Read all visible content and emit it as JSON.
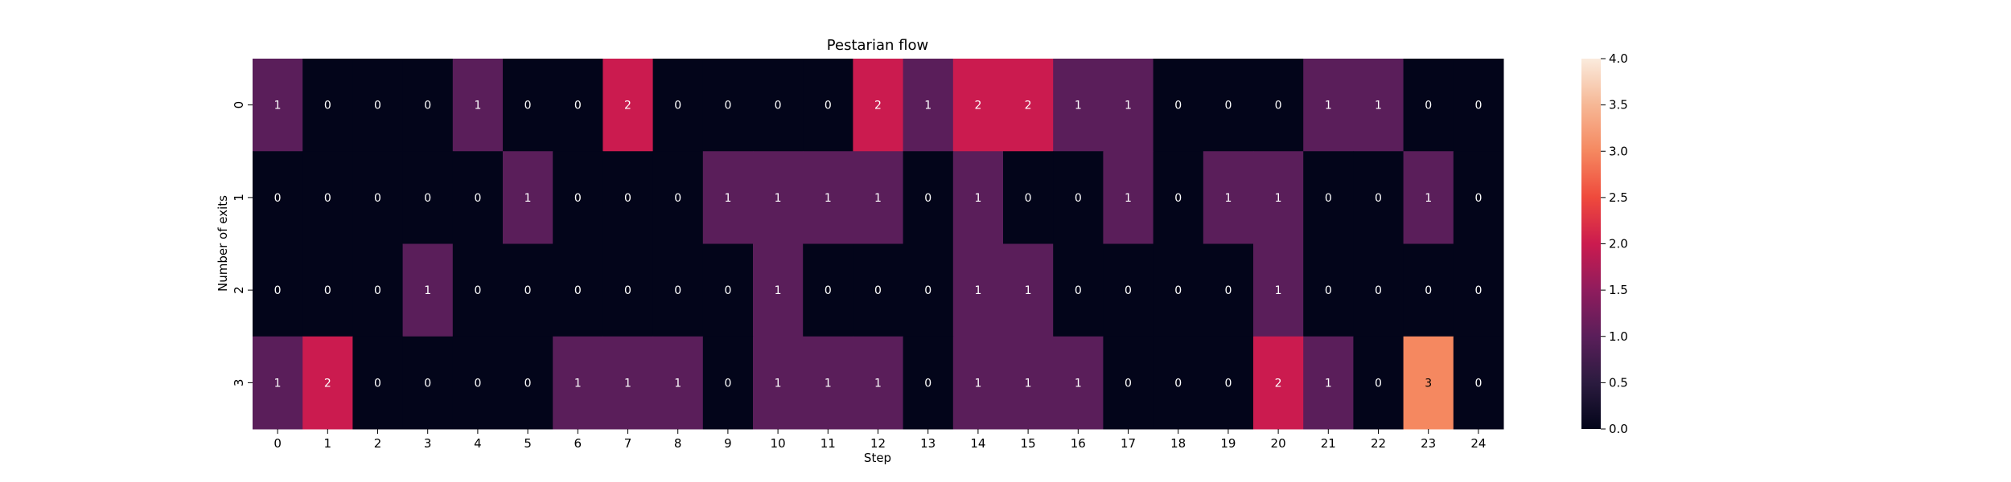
{
  "chart_data": {
    "type": "heatmap",
    "title": "Pestarian flow",
    "xlabel": "Step",
    "ylabel": "Number of exits",
    "x_categories": [
      "0",
      "1",
      "2",
      "3",
      "4",
      "5",
      "6",
      "7",
      "8",
      "9",
      "10",
      "11",
      "12",
      "13",
      "14",
      "15",
      "16",
      "17",
      "18",
      "19",
      "20",
      "21",
      "22",
      "23",
      "24"
    ],
    "y_categories": [
      "0",
      "1",
      "2",
      "3"
    ],
    "values": [
      [
        1,
        0,
        0,
        0,
        1,
        0,
        0,
        2,
        0,
        0,
        0,
        0,
        2,
        1,
        2,
        2,
        1,
        1,
        0,
        0,
        0,
        1,
        1,
        0,
        0
      ],
      [
        0,
        0,
        0,
        0,
        0,
        1,
        0,
        0,
        0,
        1,
        1,
        1,
        1,
        0,
        1,
        0,
        0,
        1,
        0,
        1,
        1,
        0,
        0,
        1,
        0
      ],
      [
        0,
        0,
        0,
        1,
        0,
        0,
        0,
        0,
        0,
        0,
        1,
        0,
        0,
        0,
        1,
        1,
        0,
        0,
        0,
        0,
        1,
        0,
        0,
        0,
        0
      ],
      [
        1,
        2,
        0,
        0,
        0,
        0,
        1,
        1,
        1,
        0,
        1,
        1,
        1,
        0,
        1,
        1,
        1,
        0,
        0,
        0,
        2,
        1,
        0,
        3,
        0
      ]
    ],
    "colorbar": {
      "range": [
        0,
        4
      ],
      "tick_labels": [
        "0.0",
        "0.5",
        "1.0",
        "1.5",
        "2.0",
        "2.5",
        "3.0",
        "3.5",
        "4.0"
      ],
      "colormap": "rocket"
    },
    "annotations": "cell values shown"
  }
}
